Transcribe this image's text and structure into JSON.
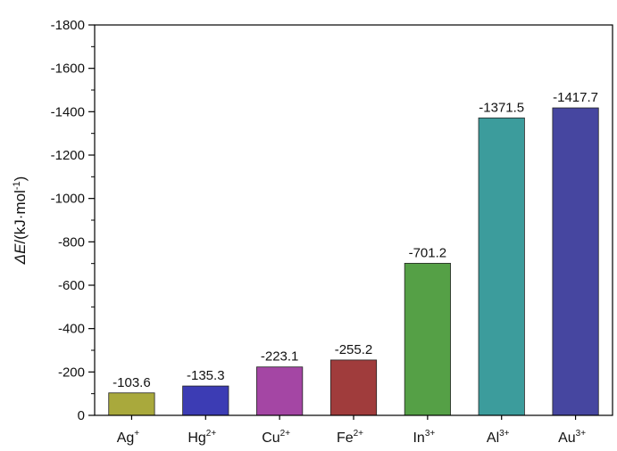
{
  "chart_data": {
    "type": "bar",
    "ylabel": {
      "symbol": "ΔE",
      "unit_open": "/(kJ·mol",
      "unit_exp": "-1",
      "unit_close": ")"
    },
    "ylim": [
      0,
      -1800
    ],
    "yticks": [
      0,
      -200,
      -400,
      -600,
      -800,
      -1000,
      -1200,
      -1400,
      -1600,
      -1800
    ],
    "ytick_labels": [
      "0",
      "-200",
      "-400",
      "-600",
      "-800",
      "-1000",
      "-1200",
      "-1400",
      "-1600",
      "-1800"
    ],
    "categories": [
      {
        "base": "Ag",
        "charge": "+"
      },
      {
        "base": "Hg",
        "charge": "2+"
      },
      {
        "base": "Cu",
        "charge": "2+"
      },
      {
        "base": "Fe",
        "charge": "2+"
      },
      {
        "base": "In",
        "charge": "3+"
      },
      {
        "base": "Al",
        "charge": "3+"
      },
      {
        "base": "Au",
        "charge": "3+"
      }
    ],
    "values": [
      -103.6,
      -135.3,
      -223.1,
      -255.2,
      -701.2,
      -1371.5,
      -1417.7
    ],
    "value_labels": [
      "-103.6",
      "-135.3",
      "-223.1",
      "-255.2",
      "-701.2",
      "-1371.5",
      "-1417.7"
    ],
    "colors": [
      "#a9a93c",
      "#3c3cb4",
      "#a446a4",
      "#a03c3c",
      "#55a046",
      "#3c9c9c",
      "#4646a0"
    ],
    "grid": false,
    "legend": "none"
  }
}
